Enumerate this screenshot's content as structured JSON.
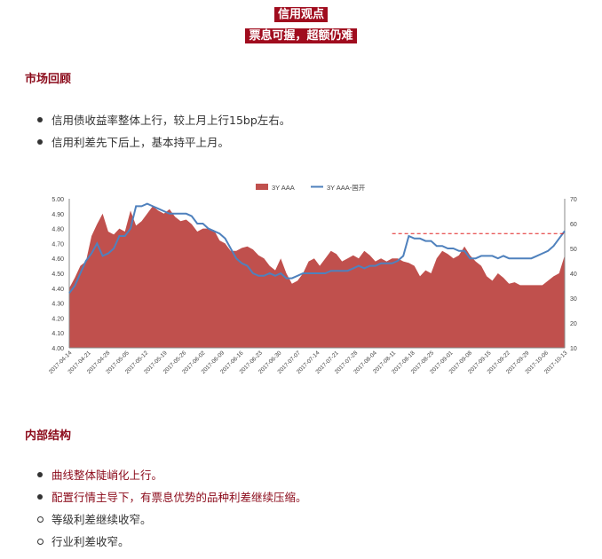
{
  "header": {
    "tag1": "信用观点",
    "tag2": "票息可握，超额仍难"
  },
  "section1": {
    "title": "市场回顾",
    "bullets": [
      "信用债收益率整体上行，较上月上行15bp左右。",
      "信用利差先下后上，基本持平上月。"
    ]
  },
  "section2": {
    "title": "内部结构",
    "bullets": [
      "曲线整体陡峭化上行。",
      "配置行情主导下，有票息优势的品种利差继续压缩。"
    ],
    "sub_bullets": [
      "等级利差继续收窄。",
      "行业利差收窄。"
    ]
  },
  "colors": {
    "accent": "#a00c1e",
    "area": "#c0504d",
    "line": "#4f81bd",
    "ref": "#e02020"
  },
  "chart_data": {
    "type": "area",
    "title": "",
    "series": [
      {
        "name": "3Y AAA",
        "axis": "left",
        "kind": "area",
        "values": [
          4.4,
          4.47,
          4.55,
          4.58,
          4.75,
          4.83,
          4.9,
          4.78,
          4.76,
          4.8,
          4.78,
          4.92,
          4.82,
          4.85,
          4.9,
          4.95,
          4.92,
          4.9,
          4.93,
          4.88,
          4.85,
          4.86,
          4.83,
          4.78,
          4.8,
          4.8,
          4.79,
          4.72,
          4.7,
          4.65,
          4.65,
          4.67,
          4.68,
          4.66,
          4.62,
          4.6,
          4.55,
          4.52,
          4.6,
          4.5,
          4.43,
          4.45,
          4.5,
          4.58,
          4.6,
          4.55,
          4.6,
          4.65,
          4.63,
          4.58,
          4.6,
          4.62,
          4.6,
          4.65,
          4.62,
          4.58,
          4.6,
          4.58,
          4.6,
          4.6,
          4.58,
          4.57,
          4.55,
          4.48,
          4.52,
          4.5,
          4.6,
          4.65,
          4.63,
          4.6,
          4.62,
          4.68,
          4.62,
          4.58,
          4.55,
          4.48,
          4.45,
          4.5,
          4.47,
          4.43,
          4.44,
          4.42,
          4.42,
          4.42,
          4.42,
          4.42,
          4.45,
          4.48,
          4.5,
          4.62
        ]
      },
      {
        "name": "3Y AAA-国开",
        "axis": "right",
        "kind": "line",
        "values": [
          32,
          35,
          40,
          45,
          48,
          52,
          47,
          48,
          50,
          55,
          55,
          58,
          67,
          67,
          68,
          67,
          66,
          65,
          64,
          64,
          64,
          64,
          63,
          60,
          60,
          58,
          57,
          56,
          54,
          50,
          46,
          44,
          43,
          40,
          39,
          39,
          40,
          39,
          40,
          38,
          38,
          39,
          40,
          40,
          40,
          40,
          40,
          41,
          41,
          41,
          41,
          42,
          43,
          42,
          43,
          43,
          44,
          44,
          44,
          45,
          47,
          55,
          54,
          54,
          53,
          53,
          51,
          51,
          50,
          50,
          49,
          49,
          46,
          46,
          47,
          47,
          47,
          46,
          47,
          46,
          46,
          46,
          46,
          46,
          47,
          48,
          49,
          51,
          54,
          57
        ]
      }
    ],
    "categories_shown": [
      "2017-04-14",
      "2017-04-21",
      "2017-04-28",
      "2017-05-05",
      "2017-05-12",
      "2017-05-19",
      "2017-05-26",
      "2017-06-02",
      "2017-06-09",
      "2017-06-16",
      "2017-06-23",
      "2017-06-30",
      "2017-07-07",
      "2017-07-14",
      "2017-07-21",
      "2017-07-28",
      "2017-08-04",
      "2017-08-11",
      "2017-08-18",
      "2017-08-25",
      "2017-09-01",
      "2017-09-08",
      "2017-09-15",
      "2017-09-22",
      "2017-09-29",
      "2017-10-06",
      "2017-10-13"
    ],
    "y_left": {
      "min": 4.0,
      "max": 5.0,
      "ticks": [
        "4.00",
        "4.10",
        "4.20",
        "4.30",
        "4.40",
        "4.50",
        "4.60",
        "4.70",
        "4.80",
        "4.90",
        "5.00"
      ]
    },
    "y_right": {
      "min": 10,
      "max": 70,
      "ticks": [
        "10",
        "20",
        "30",
        "40",
        "50",
        "60",
        "70"
      ]
    },
    "reference_line": {
      "axis": "right",
      "value": 56,
      "from_index": 58,
      "style": "dashed"
    },
    "legend_position": "top"
  }
}
